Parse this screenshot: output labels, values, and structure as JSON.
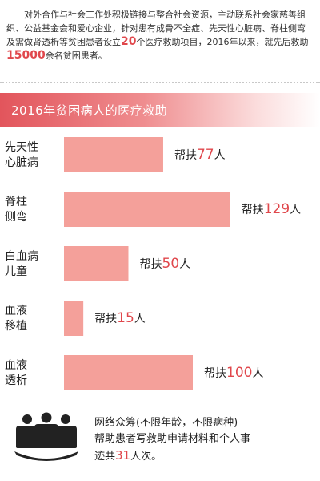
{
  "intro": {
    "part1": "对外合作与社会工作处积极链接与整合社会资源，主动联系社会家慈善组织、公益基金会和爱心企业，针对患有成骨不全症、先天性心脏病、脊柱侧弯及需做肾透析等贫困患者设立",
    "count_funds": "20",
    "part2": "个医疗救助项目，2016年以来，就先后救助",
    "count_patients": "15000",
    "part3": "余名贫困患者。"
  },
  "chart_data": {
    "type": "bar",
    "orientation": "horizontal",
    "title": "2016年贫困病人的医疗救助",
    "categories": [
      [
        "先天性",
        "心脏病"
      ],
      [
        "脊柱",
        "侧弯"
      ],
      [
        "白血病",
        "儿童"
      ],
      [
        "血液",
        "移植"
      ],
      [
        "血液",
        "透析"
      ]
    ],
    "values": [
      77,
      129,
      50,
      15,
      100
    ],
    "label_prefix": "帮扶",
    "label_suffix": "人",
    "color": "#f4a09a",
    "grid": false
  },
  "footer": {
    "icon": "group-of-people-icon",
    "line1": "网络众筹(不限年龄，不限病种)",
    "line2": "帮助患者写救助申请材料和个人事",
    "line3_prefix": "迹共",
    "line3_num": "31",
    "line3_suffix": "人次。"
  }
}
